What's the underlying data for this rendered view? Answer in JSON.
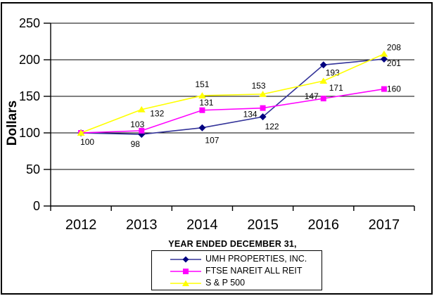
{
  "frame": {
    "border_color": "#000000",
    "background": "#ffffff"
  },
  "chart_data": {
    "type": "line",
    "title": "",
    "xlabel": "YEAR ENDED DECEMBER 31,",
    "ylabel": "Dollars",
    "categories": [
      "2012",
      "2013",
      "2014",
      "2015",
      "2016",
      "2017"
    ],
    "ylim": [
      0,
      250
    ],
    "ytick_step": 50,
    "yticks": [
      0,
      50,
      100,
      150,
      200,
      250
    ],
    "grid": "horizontal",
    "legend_position": "bottom-center",
    "axis_color": "#000000",
    "text_color": "#000000",
    "series": [
      {
        "name": "UMH PROPERTIES, INC.",
        "values": [
          100,
          98,
          107,
          122,
          193,
          201
        ],
        "line_color": "#333399",
        "marker_color": "#000080",
        "marker": "diamond",
        "label_offsets": [
          [
            9,
            17,
            "middle"
          ],
          [
            -9,
            18,
            "middle"
          ],
          [
            14,
            22,
            "middle"
          ],
          [
            13,
            18,
            "middle"
          ],
          [
            13,
            15,
            "middle"
          ],
          [
            14,
            10,
            "middle"
          ]
        ]
      },
      {
        "name": "FTSE NAREIT ALL REIT",
        "values": [
          100,
          103,
          131,
          134,
          147,
          160
        ],
        "line_color": "#ff00ff",
        "marker_color": "#ff00ff",
        "marker": "square",
        "label_offsets": [
          null,
          [
            -6,
            -5,
            "middle"
          ],
          [
            6,
            -7,
            "middle"
          ],
          [
            -18,
            13,
            "middle"
          ],
          [
            -17,
            1,
            "middle"
          ],
          [
            14,
            4,
            "middle"
          ]
        ]
      },
      {
        "name": "S & P 500",
        "values": [
          100,
          132,
          151,
          153,
          171,
          208
        ],
        "line_color": "#ffff00",
        "marker_color": "#ffff00",
        "marker": "triangle",
        "label_offsets": [
          null,
          [
            22,
            10,
            "middle"
          ],
          [
            0,
            -12,
            "middle"
          ],
          [
            -6,
            -8,
            "middle"
          ],
          [
            18,
            14,
            "middle"
          ],
          [
            14,
            -5,
            "middle"
          ]
        ]
      }
    ]
  }
}
